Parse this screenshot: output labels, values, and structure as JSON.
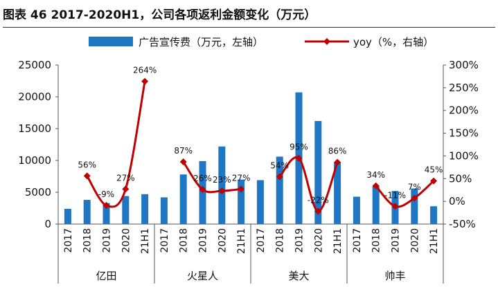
{
  "title": "图表 46 2017-2020H1，公司各项返利金额变化（万元）",
  "chart_data": {
    "type": "bar+line",
    "groups": [
      "亿田",
      "火星人",
      "美大",
      "帅丰"
    ],
    "categories": [
      "2017",
      "2018",
      "2019",
      "2020",
      "21H1"
    ],
    "series": [
      {
        "name": "广告宣传费（万元，左轴）",
        "type": "bar",
        "axis": "left",
        "color": "#1f77c4",
        "values": [
          [
            2400,
            3800,
            3300,
            4400,
            4700
          ],
          [
            4200,
            7800,
            9900,
            12200,
            7000
          ],
          [
            6900,
            10600,
            20700,
            16200,
            9700
          ],
          [
            4300,
            6000,
            5200,
            5600,
            2800
          ]
        ]
      },
      {
        "name": "yoy（%，右轴）",
        "type": "line",
        "axis": "right",
        "color": "#c00000",
        "values": [
          [
            null,
            56,
            -9,
            27,
            264
          ],
          [
            null,
            87,
            26,
            23,
            27
          ],
          [
            null,
            54,
            95,
            -22,
            86
          ],
          [
            null,
            34,
            -11,
            7,
            45
          ]
        ],
        "labels": [
          [
            null,
            "56%",
            "-9%",
            "27%",
            "264%"
          ],
          [
            null,
            "87%",
            "26%",
            "23%",
            "27%"
          ],
          [
            null,
            "54%",
            "95%",
            "-22%",
            "86%"
          ],
          [
            null,
            "34%",
            "-11%",
            "7%",
            "45%"
          ]
        ]
      }
    ],
    "y_left": {
      "min": 0,
      "max": 25000,
      "ticks": [
        0,
        5000,
        10000,
        15000,
        20000,
        25000
      ],
      "tick_labels": [
        "0",
        "5000",
        "10000",
        "15000",
        "20000",
        "25000"
      ]
    },
    "y_right": {
      "min": -50,
      "max": 300,
      "ticks": [
        -50,
        0,
        50,
        100,
        150,
        200,
        250,
        300
      ],
      "tick_labels": [
        "-50%",
        "0%",
        "50%",
        "100%",
        "150%",
        "200%",
        "250%",
        "300%"
      ]
    },
    "legend_position": "top"
  }
}
